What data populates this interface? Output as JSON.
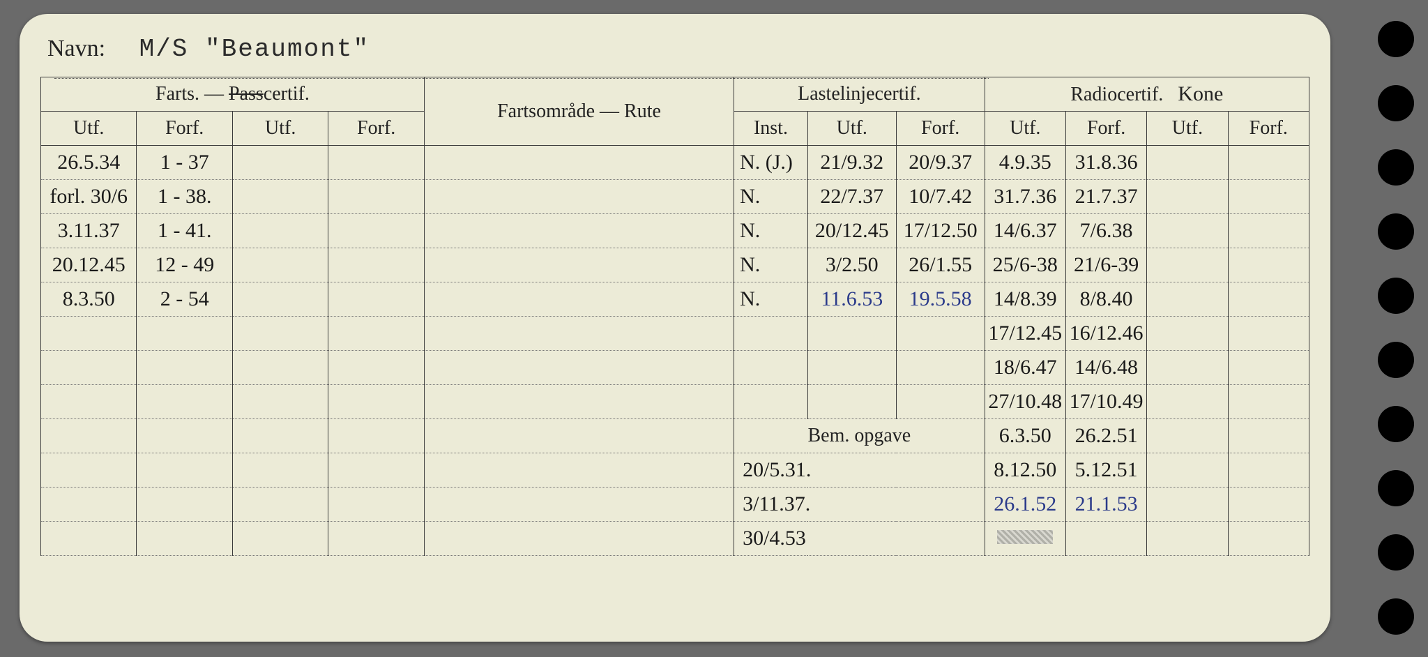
{
  "navn_label": "Navn:",
  "navn_value": "M/S \"Beaumont\"",
  "headers": {
    "farts_passcertif": "Farts. — ",
    "passcertif_strike": "Pass",
    "passcertif_rest": "certif.",
    "fartsomrade": "Fartsområde — Rute",
    "lastelinje": "Lastelinjecertif.",
    "radiocertif": "Radiocertif.",
    "radiocertif_hand": "Kone",
    "utf": "Utf.",
    "forf": "Forf.",
    "inst": "Inst.",
    "bem_opgave": "Bem. opgave"
  },
  "farts_rows": [
    {
      "utf": "26.5.34",
      "forf": "1 - 37"
    },
    {
      "utf": "forl. 30/6",
      "forf": "1 - 38."
    },
    {
      "utf": "3.11.37",
      "forf": "1 - 41."
    },
    {
      "utf": "20.12.45",
      "forf": "12 - 49"
    },
    {
      "utf": "8.3.50",
      "forf": "2 - 54"
    }
  ],
  "laste_rows": [
    {
      "inst": "N. (J.)",
      "utf": "21/9.32",
      "forf": "20/9.37"
    },
    {
      "inst": "N.",
      "utf": "22/7.37",
      "forf": "10/7.42"
    },
    {
      "inst": "N.",
      "utf": "20/12.45",
      "forf": "17/12.50"
    },
    {
      "inst": "N.",
      "utf": "3/2.50",
      "forf": "26/1.55"
    },
    {
      "inst": "N.",
      "utf": "11.6.53",
      "forf": "19.5.58",
      "blue": true
    }
  ],
  "bem_rows": [
    "20/5.31.",
    "3/11.37.",
    "30/4.53"
  ],
  "radio_rows": [
    {
      "utf": "4.9.35",
      "forf": "31.8.36"
    },
    {
      "utf": "31.7.36",
      "forf": "21.7.37"
    },
    {
      "utf": "14/6.37",
      "forf": "7/6.38"
    },
    {
      "utf": "25/6-38",
      "forf": "21/6-39"
    },
    {
      "utf": "14/8.39",
      "forf": "8/8.40"
    },
    {
      "utf": "17/12.45",
      "forf": "16/12.46"
    },
    {
      "utf": "18/6.47",
      "forf": "14/6.48"
    },
    {
      "utf": "27/10.48",
      "forf": "17/10.49"
    },
    {
      "utf": "6.3.50",
      "forf": "26.2.51"
    },
    {
      "utf": "8.12.50",
      "forf": "5.12.51"
    },
    {
      "utf": "26.1.52",
      "forf": "21.1.53",
      "blue": true
    },
    {
      "utf": "",
      "forf": "",
      "smudge": true
    }
  ],
  "colors": {
    "card_bg": "#ecebd7",
    "line": "#3b3b3b",
    "ink": "#1a1a1a",
    "blue_ink": "#2a3a8a",
    "page_bg": "#6a6a6a"
  }
}
